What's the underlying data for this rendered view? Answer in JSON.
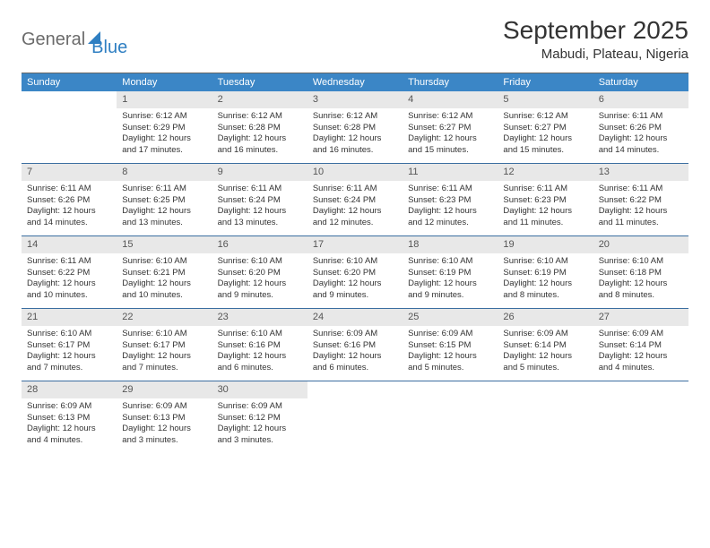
{
  "logo": {
    "part1": "General",
    "part2": "Blue"
  },
  "title": "September 2025",
  "location": "Mabudi, Plateau, Nigeria",
  "colors": {
    "header_bg": "#3b86c6",
    "header_text": "#ffffff",
    "band_bg": "#e8e8e8",
    "week_border": "#3b6ea0",
    "logo_gray": "#6b6b6b",
    "logo_blue": "#2f7fc2",
    "page_bg": "#ffffff",
    "text": "#333333"
  },
  "dow": [
    "Sunday",
    "Monday",
    "Tuesday",
    "Wednesday",
    "Thursday",
    "Friday",
    "Saturday"
  ],
  "weeks": [
    [
      null,
      {
        "n": "1",
        "sr": "6:12 AM",
        "ss": "6:29 PM",
        "dl": "12 hours and 17 minutes."
      },
      {
        "n": "2",
        "sr": "6:12 AM",
        "ss": "6:28 PM",
        "dl": "12 hours and 16 minutes."
      },
      {
        "n": "3",
        "sr": "6:12 AM",
        "ss": "6:28 PM",
        "dl": "12 hours and 16 minutes."
      },
      {
        "n": "4",
        "sr": "6:12 AM",
        "ss": "6:27 PM",
        "dl": "12 hours and 15 minutes."
      },
      {
        "n": "5",
        "sr": "6:12 AM",
        "ss": "6:27 PM",
        "dl": "12 hours and 15 minutes."
      },
      {
        "n": "6",
        "sr": "6:11 AM",
        "ss": "6:26 PM",
        "dl": "12 hours and 14 minutes."
      }
    ],
    [
      {
        "n": "7",
        "sr": "6:11 AM",
        "ss": "6:26 PM",
        "dl": "12 hours and 14 minutes."
      },
      {
        "n": "8",
        "sr": "6:11 AM",
        "ss": "6:25 PM",
        "dl": "12 hours and 13 minutes."
      },
      {
        "n": "9",
        "sr": "6:11 AM",
        "ss": "6:24 PM",
        "dl": "12 hours and 13 minutes."
      },
      {
        "n": "10",
        "sr": "6:11 AM",
        "ss": "6:24 PM",
        "dl": "12 hours and 12 minutes."
      },
      {
        "n": "11",
        "sr": "6:11 AM",
        "ss": "6:23 PM",
        "dl": "12 hours and 12 minutes."
      },
      {
        "n": "12",
        "sr": "6:11 AM",
        "ss": "6:23 PM",
        "dl": "12 hours and 11 minutes."
      },
      {
        "n": "13",
        "sr": "6:11 AM",
        "ss": "6:22 PM",
        "dl": "12 hours and 11 minutes."
      }
    ],
    [
      {
        "n": "14",
        "sr": "6:11 AM",
        "ss": "6:22 PM",
        "dl": "12 hours and 10 minutes."
      },
      {
        "n": "15",
        "sr": "6:10 AM",
        "ss": "6:21 PM",
        "dl": "12 hours and 10 minutes."
      },
      {
        "n": "16",
        "sr": "6:10 AM",
        "ss": "6:20 PM",
        "dl": "12 hours and 9 minutes."
      },
      {
        "n": "17",
        "sr": "6:10 AM",
        "ss": "6:20 PM",
        "dl": "12 hours and 9 minutes."
      },
      {
        "n": "18",
        "sr": "6:10 AM",
        "ss": "6:19 PM",
        "dl": "12 hours and 9 minutes."
      },
      {
        "n": "19",
        "sr": "6:10 AM",
        "ss": "6:19 PM",
        "dl": "12 hours and 8 minutes."
      },
      {
        "n": "20",
        "sr": "6:10 AM",
        "ss": "6:18 PM",
        "dl": "12 hours and 8 minutes."
      }
    ],
    [
      {
        "n": "21",
        "sr": "6:10 AM",
        "ss": "6:17 PM",
        "dl": "12 hours and 7 minutes."
      },
      {
        "n": "22",
        "sr": "6:10 AM",
        "ss": "6:17 PM",
        "dl": "12 hours and 7 minutes."
      },
      {
        "n": "23",
        "sr": "6:10 AM",
        "ss": "6:16 PM",
        "dl": "12 hours and 6 minutes."
      },
      {
        "n": "24",
        "sr": "6:09 AM",
        "ss": "6:16 PM",
        "dl": "12 hours and 6 minutes."
      },
      {
        "n": "25",
        "sr": "6:09 AM",
        "ss": "6:15 PM",
        "dl": "12 hours and 5 minutes."
      },
      {
        "n": "26",
        "sr": "6:09 AM",
        "ss": "6:14 PM",
        "dl": "12 hours and 5 minutes."
      },
      {
        "n": "27",
        "sr": "6:09 AM",
        "ss": "6:14 PM",
        "dl": "12 hours and 4 minutes."
      }
    ],
    [
      {
        "n": "28",
        "sr": "6:09 AM",
        "ss": "6:13 PM",
        "dl": "12 hours and 4 minutes."
      },
      {
        "n": "29",
        "sr": "6:09 AM",
        "ss": "6:13 PM",
        "dl": "12 hours and 3 minutes."
      },
      {
        "n": "30",
        "sr": "6:09 AM",
        "ss": "6:12 PM",
        "dl": "12 hours and 3 minutes."
      },
      null,
      null,
      null,
      null
    ]
  ],
  "labels": {
    "sunrise": "Sunrise:",
    "sunset": "Sunset:",
    "daylight": "Daylight:"
  }
}
